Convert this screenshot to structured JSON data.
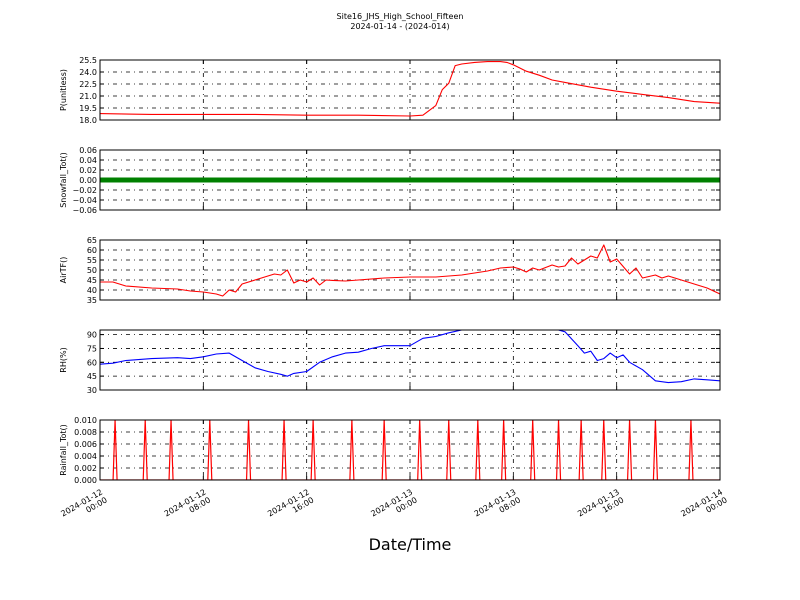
{
  "chart_data": {
    "type": "line",
    "title": "Site16_JHS_High_School_Fifteen",
    "subtitle": "2024-01-14 - (2024-014)",
    "xlabel": "Date/Time",
    "x_ticks": [
      "2024-01-12 00:00",
      "2024-01-12 08:00",
      "2024-01-12 16:00",
      "2024-01-13 00:00",
      "2024-01-13 08:00",
      "2024-01-13 16:00",
      "2024-01-14 00:00"
    ],
    "xlim": [
      "2024-01-12 00:00",
      "2024-01-14 00:00"
    ],
    "grid": true,
    "panels": [
      {
        "ylabel": "P(unitless)",
        "ylim": [
          18.0,
          25.5
        ],
        "yticks": [
          "18.0",
          "19.5",
          "21.0",
          "22.5",
          "24.0",
          "25.5"
        ],
        "color": "#ff0000",
        "series_type": "line",
        "points": [
          [
            "2024-01-12 00:00",
            18.8
          ],
          [
            "2024-01-12 04:00",
            18.7
          ],
          [
            "2024-01-12 08:00",
            18.7
          ],
          [
            "2024-01-12 12:00",
            18.7
          ],
          [
            "2024-01-12 16:00",
            18.6
          ],
          [
            "2024-01-12 20:00",
            18.6
          ],
          [
            "2024-01-13 00:00",
            18.5
          ],
          [
            "2024-01-13 01:00",
            18.6
          ],
          [
            "2024-01-13 02:00",
            19.8
          ],
          [
            "2024-01-13 02:30",
            21.8
          ],
          [
            "2024-01-13 03:00",
            22.6
          ],
          [
            "2024-01-13 03:30",
            24.8
          ],
          [
            "2024-01-13 04:00",
            25.0
          ],
          [
            "2024-01-13 05:00",
            25.2
          ],
          [
            "2024-01-13 06:00",
            25.3
          ],
          [
            "2024-01-13 07:00",
            25.3
          ],
          [
            "2024-01-13 07:30",
            25.2
          ],
          [
            "2024-01-13 08:00",
            24.9
          ],
          [
            "2024-01-13 09:00",
            24.1
          ],
          [
            "2024-01-13 10:00",
            23.6
          ],
          [
            "2024-01-13 11:00",
            23.0
          ],
          [
            "2024-01-13 12:00",
            22.7
          ],
          [
            "2024-01-13 13:00",
            22.4
          ],
          [
            "2024-01-13 14:00",
            22.1
          ],
          [
            "2024-01-13 16:00",
            21.6
          ],
          [
            "2024-01-13 18:00",
            21.2
          ],
          [
            "2024-01-13 20:00",
            20.8
          ],
          [
            "2024-01-13 22:00",
            20.3
          ],
          [
            "2024-01-14 00:00",
            20.1
          ]
        ]
      },
      {
        "ylabel": "Snowfall_Tot()",
        "ylim": [
          -0.06,
          0.06
        ],
        "yticks": [
          "−0.06",
          "−0.04",
          "−0.02",
          "0.00",
          "0.02",
          "0.04",
          "0.06"
        ],
        "color": "#008000",
        "series_type": "thick-line",
        "points": [
          [
            "2024-01-12 00:00",
            0.0
          ],
          [
            "2024-01-14 00:00",
            0.0
          ]
        ]
      },
      {
        "ylabel": "AirTF()",
        "ylim": [
          35,
          65
        ],
        "yticks": [
          "35",
          "40",
          "45",
          "50",
          "55",
          "60",
          "65"
        ],
        "color": "#ff0000",
        "series_type": "line",
        "points": [
          [
            "2024-01-12 00:00",
            44.0
          ],
          [
            "2024-01-12 01:00",
            44.0
          ],
          [
            "2024-01-12 02:00",
            42.0
          ],
          [
            "2024-01-12 04:00",
            41.0
          ],
          [
            "2024-01-12 06:00",
            40.5
          ],
          [
            "2024-01-12 07:00",
            39.5
          ],
          [
            "2024-01-12 08:00",
            39.0
          ],
          [
            "2024-01-12 09:00",
            38.0
          ],
          [
            "2024-01-12 09:30",
            37.0
          ],
          [
            "2024-01-12 10:00",
            40.0
          ],
          [
            "2024-01-12 10:30",
            39.0
          ],
          [
            "2024-01-12 11:00",
            43.0
          ],
          [
            "2024-01-12 12:00",
            45.0
          ],
          [
            "2024-01-12 13:00",
            47.0
          ],
          [
            "2024-01-12 13:30",
            48.0
          ],
          [
            "2024-01-12 14:00",
            47.5
          ],
          [
            "2024-01-12 14:30",
            50.0
          ],
          [
            "2024-01-12 15:00",
            43.5
          ],
          [
            "2024-01-12 15:30",
            45.0
          ],
          [
            "2024-01-12 16:00",
            44.0
          ],
          [
            "2024-01-12 16:30",
            46.0
          ],
          [
            "2024-01-12 17:00",
            42.5
          ],
          [
            "2024-01-12 17:30",
            45.0
          ],
          [
            "2024-01-12 18:00",
            44.8
          ],
          [
            "2024-01-12 19:00",
            44.5
          ],
          [
            "2024-01-12 20:00",
            45.0
          ],
          [
            "2024-01-12 22:00",
            46.0
          ],
          [
            "2024-01-13 00:00",
            46.5
          ],
          [
            "2024-01-13 02:00",
            46.5
          ],
          [
            "2024-01-13 04:00",
            47.5
          ],
          [
            "2024-01-13 06:00",
            49.5
          ],
          [
            "2024-01-13 07:00",
            51.0
          ],
          [
            "2024-01-13 08:00",
            51.5
          ],
          [
            "2024-01-13 08:30",
            50.5
          ],
          [
            "2024-01-13 09:00",
            49.0
          ],
          [
            "2024-01-13 09:30",
            51.0
          ],
          [
            "2024-01-13 10:00",
            50.0
          ],
          [
            "2024-01-13 11:00",
            52.5
          ],
          [
            "2024-01-13 11:30",
            51.5
          ],
          [
            "2024-01-13 12:00",
            52.0
          ],
          [
            "2024-01-13 12:30",
            56.0
          ],
          [
            "2024-01-13 13:00",
            53.0
          ],
          [
            "2024-01-13 13:30",
            55.0
          ],
          [
            "2024-01-13 14:00",
            57.0
          ],
          [
            "2024-01-13 14:30",
            56.0
          ],
          [
            "2024-01-13 15:00",
            62.5
          ],
          [
            "2024-01-13 15:30",
            54.0
          ],
          [
            "2024-01-13 16:00",
            55.5
          ],
          [
            "2024-01-13 17:00",
            48.0
          ],
          [
            "2024-01-13 17:30",
            51.0
          ],
          [
            "2024-01-13 18:00",
            46.0
          ],
          [
            "2024-01-13 19:00",
            47.5
          ],
          [
            "2024-01-13 19:30",
            46.0
          ],
          [
            "2024-01-13 20:00",
            47.0
          ],
          [
            "2024-01-13 21:00",
            45.0
          ],
          [
            "2024-01-13 22:00",
            43.0
          ],
          [
            "2024-01-13 23:00",
            41.0
          ],
          [
            "2024-01-14 00:00",
            38.0
          ]
        ]
      },
      {
        "ylabel": "RH(%)",
        "ylim": [
          30,
          95
        ],
        "yticks": [
          "30",
          "45",
          "60",
          "75",
          "90"
        ],
        "color": "#0000ff",
        "series_type": "line",
        "points": [
          [
            "2024-01-12 00:00",
            58
          ],
          [
            "2024-01-12 01:00",
            59
          ],
          [
            "2024-01-12 02:00",
            62
          ],
          [
            "2024-01-12 04:00",
            64
          ],
          [
            "2024-01-12 06:00",
            65
          ],
          [
            "2024-01-12 07:00",
            64
          ],
          [
            "2024-01-12 08:00",
            66
          ],
          [
            "2024-01-12 09:00",
            69
          ],
          [
            "2024-01-12 10:00",
            70
          ],
          [
            "2024-01-12 11:00",
            62
          ],
          [
            "2024-01-12 12:00",
            54
          ],
          [
            "2024-01-12 13:00",
            50
          ],
          [
            "2024-01-12 14:00",
            47
          ],
          [
            "2024-01-12 14:30",
            45
          ],
          [
            "2024-01-12 15:00",
            48
          ],
          [
            "2024-01-12 16:00",
            50
          ],
          [
            "2024-01-12 17:00",
            60
          ],
          [
            "2024-01-12 18:00",
            66
          ],
          [
            "2024-01-12 19:00",
            70
          ],
          [
            "2024-01-12 20:00",
            71
          ],
          [
            "2024-01-12 21:00",
            75
          ],
          [
            "2024-01-12 22:00",
            78
          ],
          [
            "2024-01-13 00:00",
            78
          ],
          [
            "2024-01-13 01:00",
            86
          ],
          [
            "2024-01-13 02:00",
            88
          ],
          [
            "2024-01-13 03:00",
            92
          ],
          [
            "2024-01-13 04:00",
            95
          ],
          [
            "2024-01-13 06:00",
            96
          ],
          [
            "2024-01-13 08:00",
            96
          ],
          [
            "2024-01-13 10:00",
            97
          ],
          [
            "2024-01-13 11:00",
            97
          ],
          [
            "2024-01-13 12:00",
            93
          ],
          [
            "2024-01-13 13:00",
            78
          ],
          [
            "2024-01-13 13:30",
            70
          ],
          [
            "2024-01-13 14:00",
            72
          ],
          [
            "2024-01-13 14:30",
            62
          ],
          [
            "2024-01-13 15:00",
            64
          ],
          [
            "2024-01-13 15:30",
            70
          ],
          [
            "2024-01-13 16:00",
            65
          ],
          [
            "2024-01-13 16:30",
            68
          ],
          [
            "2024-01-13 17:00",
            60
          ],
          [
            "2024-01-13 18:00",
            52
          ],
          [
            "2024-01-13 19:00",
            40
          ],
          [
            "2024-01-13 20:00",
            38
          ],
          [
            "2024-01-13 21:00",
            39
          ],
          [
            "2024-01-13 22:00",
            42
          ],
          [
            "2024-01-13 23:00",
            41
          ],
          [
            "2024-01-14 00:00",
            40
          ]
        ]
      },
      {
        "ylabel": "Rainfall_Tot()",
        "ylim": [
          0.0,
          0.01
        ],
        "yticks": [
          "0.000",
          "0.002",
          "0.004",
          "0.006",
          "0.008",
          "0.010"
        ],
        "color": "#ff0000",
        "series_type": "spikes",
        "spike_value": 0.01,
        "spike_times": [
          "2024-01-12 01:10",
          "2024-01-12 03:30",
          "2024-01-12 05:30",
          "2024-01-12 08:30",
          "2024-01-12 11:30",
          "2024-01-12 14:15",
          "2024-01-12 16:30",
          "2024-01-12 19:30",
          "2024-01-12 22:00",
          "2024-01-13 00:45",
          "2024-01-13 03:00",
          "2024-01-13 05:15",
          "2024-01-13 07:15",
          "2024-01-13 09:30",
          "2024-01-13 11:30",
          "2024-01-13 13:15",
          "2024-01-13 15:00",
          "2024-01-13 17:00",
          "2024-01-13 19:00",
          "2024-01-13 21:45"
        ]
      }
    ]
  }
}
